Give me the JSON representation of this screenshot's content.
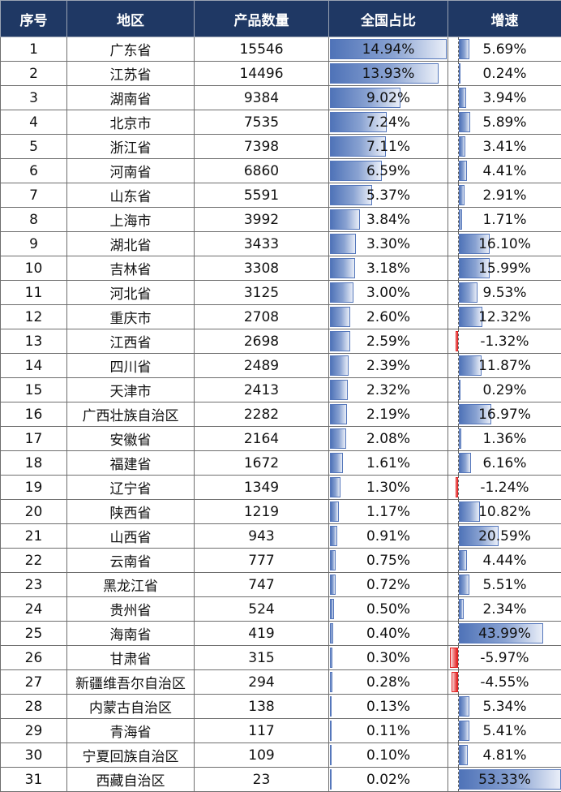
{
  "headers": [
    "序号",
    "地区",
    "产品数量",
    "全国占比",
    "增速"
  ],
  "rows": [
    {
      "idx": "1",
      "region": "广东省",
      "count": "15546",
      "share": "14.94%",
      "growth": "5.69%"
    },
    {
      "idx": "2",
      "region": "江苏省",
      "count": "14496",
      "share": "13.93%",
      "growth": "0.24%"
    },
    {
      "idx": "3",
      "region": "湖南省",
      "count": "9384",
      "share": "9.02%",
      "growth": "3.94%"
    },
    {
      "idx": "4",
      "region": "北京市",
      "count": "7535",
      "share": "7.24%",
      "growth": "5.89%"
    },
    {
      "idx": "5",
      "region": "浙江省",
      "count": "7398",
      "share": "7.11%",
      "growth": "3.41%"
    },
    {
      "idx": "6",
      "region": "河南省",
      "count": "6860",
      "share": "6.59%",
      "growth": "4.41%"
    },
    {
      "idx": "7",
      "region": "山东省",
      "count": "5591",
      "share": "5.37%",
      "growth": "2.91%"
    },
    {
      "idx": "8",
      "region": "上海市",
      "count": "3992",
      "share": "3.84%",
      "growth": "1.71%"
    },
    {
      "idx": "9",
      "region": "湖北省",
      "count": "3433",
      "share": "3.30%",
      "growth": "16.10%"
    },
    {
      "idx": "10",
      "region": "吉林省",
      "count": "3308",
      "share": "3.18%",
      "growth": "15.99%"
    },
    {
      "idx": "11",
      "region": "河北省",
      "count": "3125",
      "share": "3.00%",
      "growth": "9.53%"
    },
    {
      "idx": "12",
      "region": "重庆市",
      "count": "2708",
      "share": "2.60%",
      "growth": "12.32%"
    },
    {
      "idx": "13",
      "region": "江西省",
      "count": "2698",
      "share": "2.59%",
      "growth": "-1.32%"
    },
    {
      "idx": "14",
      "region": "四川省",
      "count": "2489",
      "share": "2.39%",
      "growth": "11.87%"
    },
    {
      "idx": "15",
      "region": "天津市",
      "count": "2413",
      "share": "2.32%",
      "growth": "0.29%"
    },
    {
      "idx": "16",
      "region": "广西壮族自治区",
      "count": "2282",
      "share": "2.19%",
      "growth": "16.97%"
    },
    {
      "idx": "17",
      "region": "安徽省",
      "count": "2164",
      "share": "2.08%",
      "growth": "1.36%"
    },
    {
      "idx": "18",
      "region": "福建省",
      "count": "1672",
      "share": "1.61%",
      "growth": "6.16%"
    },
    {
      "idx": "19",
      "region": "辽宁省",
      "count": "1349",
      "share": "1.30%",
      "growth": "-1.24%"
    },
    {
      "idx": "20",
      "region": "陕西省",
      "count": "1219",
      "share": "1.17%",
      "growth": "10.82%"
    },
    {
      "idx": "21",
      "region": "山西省",
      "count": "943",
      "share": "0.91%",
      "growth": "20.59%"
    },
    {
      "idx": "22",
      "region": "云南省",
      "count": "777",
      "share": "0.75%",
      "growth": "4.44%"
    },
    {
      "idx": "23",
      "region": "黑龙江省",
      "count": "747",
      "share": "0.72%",
      "growth": "5.51%"
    },
    {
      "idx": "24",
      "region": "贵州省",
      "count": "524",
      "share": "0.50%",
      "growth": "2.34%"
    },
    {
      "idx": "25",
      "region": "海南省",
      "count": "419",
      "share": "0.40%",
      "growth": "43.99%"
    },
    {
      "idx": "26",
      "region": "甘肃省",
      "count": "315",
      "share": "0.30%",
      "growth": "-5.97%"
    },
    {
      "idx": "27",
      "region": "新疆维吾尔自治区",
      "count": "294",
      "share": "0.28%",
      "growth": "-4.55%"
    },
    {
      "idx": "28",
      "region": "内蒙古自治区",
      "count": "138",
      "share": "0.13%",
      "growth": "5.34%"
    },
    {
      "idx": "29",
      "region": "青海省",
      "count": "117",
      "share": "0.11%",
      "growth": "5.41%"
    },
    {
      "idx": "30",
      "region": "宁夏回族自治区",
      "count": "109",
      "share": "0.10%",
      "growth": "4.81%"
    },
    {
      "idx": "31",
      "region": "西藏自治区",
      "count": "23",
      "share": "0.02%",
      "growth": "53.33%"
    }
  ],
  "colors": {
    "header_bg": "#1f3864",
    "header_text": "#ffffff",
    "bar_blue": "#4f73b8",
    "bar_red": "#e02020"
  }
}
